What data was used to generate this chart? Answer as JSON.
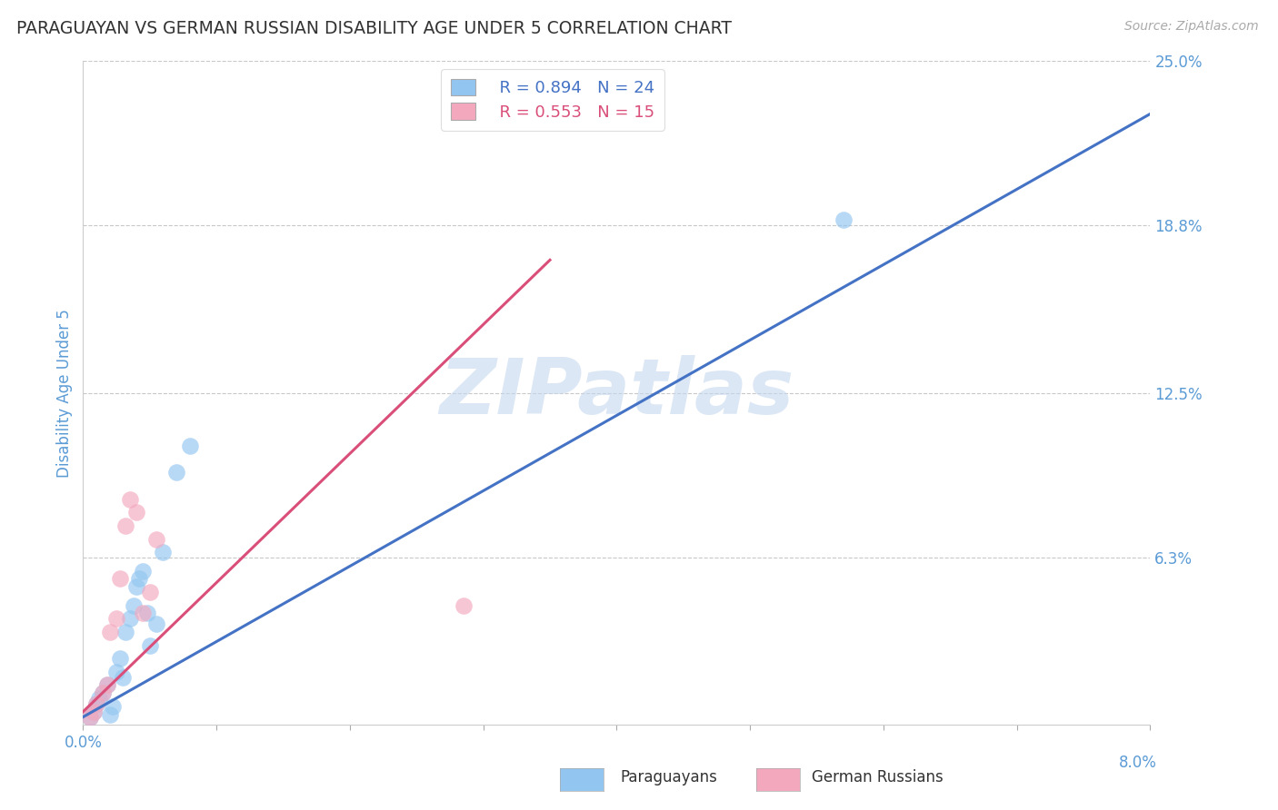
{
  "title": "PARAGUAYAN VS GERMAN RUSSIAN DISABILITY AGE UNDER 5 CORRELATION CHART",
  "source": "Source: ZipAtlas.com",
  "ylabel": "Disability Age Under 5",
  "xlim": [
    0.0,
    8.0
  ],
  "ylim": [
    0.0,
    25.0
  ],
  "yticks": [
    6.3,
    12.5,
    18.8,
    25.0
  ],
  "ytick_labels": [
    "6.3%",
    "12.5%",
    "18.8%",
    "25.0%"
  ],
  "legend_r": [
    "R = 0.894",
    "R = 0.553"
  ],
  "legend_n": [
    "N = 24",
    "N = 15"
  ],
  "blue_color": "#92c5f0",
  "pink_color": "#f4a8be",
  "blue_line_color": "#4472C4",
  "pink_line_color": "#d94f7a",
  "watermark_text": "ZIPatlas",
  "blue_scatter_x": [
    0.05,
    0.08,
    0.1,
    0.12,
    0.15,
    0.18,
    0.2,
    0.22,
    0.25,
    0.28,
    0.3,
    0.32,
    0.35,
    0.38,
    0.4,
    0.42,
    0.45,
    0.48,
    0.5,
    0.55,
    0.6,
    0.7,
    0.8,
    5.7
  ],
  "blue_scatter_y": [
    0.3,
    0.5,
    0.8,
    1.0,
    1.2,
    1.5,
    0.4,
    0.7,
    2.0,
    2.5,
    1.8,
    3.5,
    4.0,
    4.5,
    5.2,
    5.5,
    5.8,
    4.2,
    3.0,
    3.8,
    6.5,
    9.5,
    10.5,
    19.0
  ],
  "pink_scatter_x": [
    0.05,
    0.08,
    0.1,
    0.15,
    0.18,
    0.2,
    0.25,
    0.28,
    0.32,
    0.35,
    0.4,
    0.45,
    0.5,
    0.55,
    2.85
  ],
  "pink_scatter_y": [
    0.3,
    0.5,
    0.8,
    1.2,
    1.5,
    3.5,
    4.0,
    5.5,
    7.5,
    8.5,
    8.0,
    4.2,
    5.0,
    7.0,
    4.5
  ],
  "blue_line_x": [
    0.0,
    8.0
  ],
  "blue_line_y": [
    0.3,
    23.0
  ],
  "pink_line_x": [
    0.0,
    3.5
  ],
  "pink_line_y": [
    0.5,
    17.5
  ],
  "title_color": "#333333",
  "axis_label_color": "#5b9bd5",
  "tick_label_color": "#5b9bd5",
  "grid_color": "#c8c8c8",
  "background_color": "#ffffff"
}
